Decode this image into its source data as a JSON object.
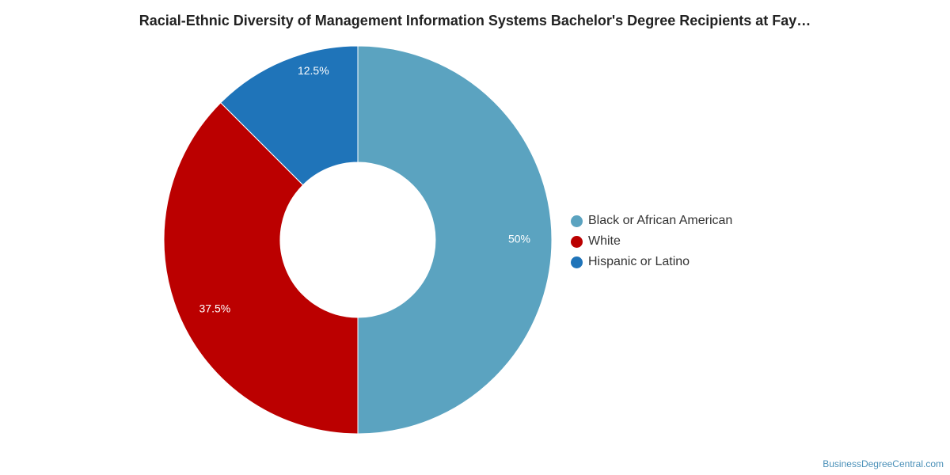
{
  "chart_data": {
    "type": "pie",
    "variant": "donut",
    "title": "Racial-Ethnic Diversity of Management Information Systems Bachelor's Degree Recipients at Fay…",
    "legend_position": "right",
    "slices": [
      {
        "label": "Black or African American",
        "value": 50,
        "display": "50%",
        "color": "#5ba3c0"
      },
      {
        "label": "White",
        "value": 37.5,
        "display": "37.5%",
        "color": "#bb0000"
      },
      {
        "label": "Hispanic or Latino",
        "value": 12.5,
        "display": "12.5%",
        "color": "#1f74b9"
      }
    ]
  },
  "watermark": "BusinessDegreeCentral.com"
}
